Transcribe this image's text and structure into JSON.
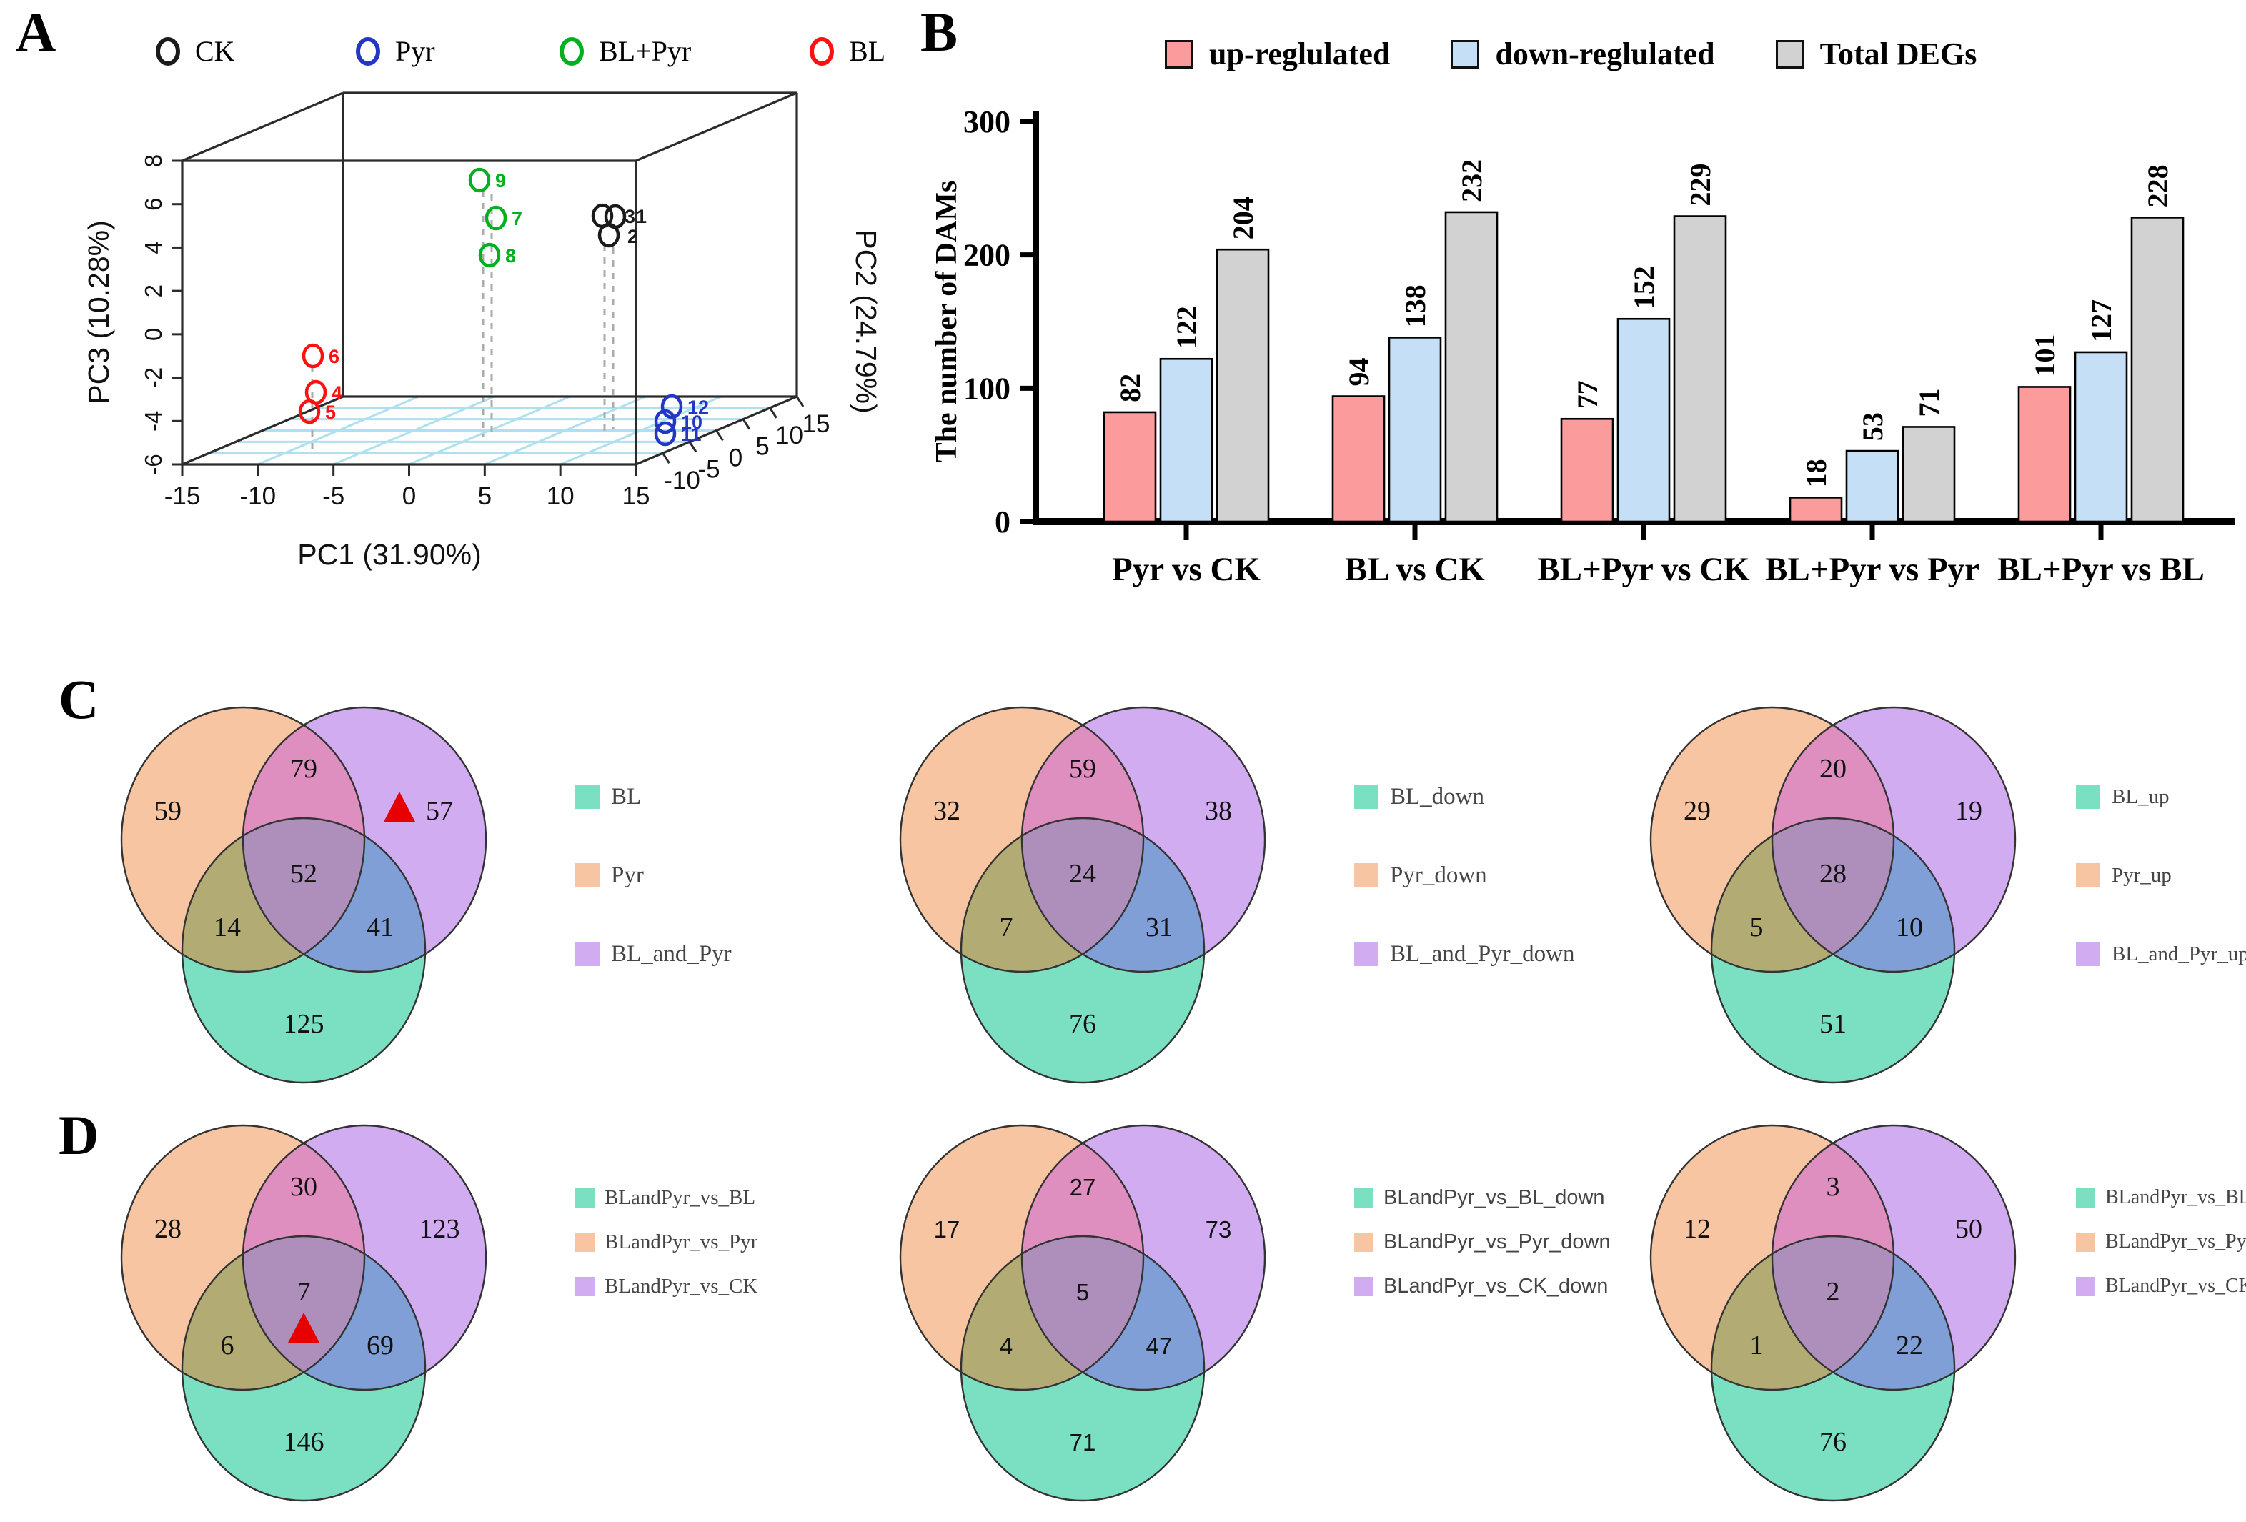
{
  "panels": {
    "a": {
      "label": "A",
      "legend": [
        {
          "label": "CK",
          "color": "#1a1a1a"
        },
        {
          "label": "Pyr",
          "color": "#2336c4"
        },
        {
          "label": "BL+Pyr",
          "color": "#00b01f"
        },
        {
          "label": "BL",
          "color": "#fe1111"
        }
      ],
      "axes": {
        "x": {
          "label": "PC1 (31.90%)",
          "ticks": [
            "-15",
            "-10",
            "-5",
            "0",
            "5",
            "10",
            "15"
          ]
        },
        "y": {
          "label": "PC3 (10.28%)",
          "ticks": [
            "8",
            "6",
            "4",
            "2",
            "0",
            "-2",
            "-4",
            "-6"
          ]
        },
        "z": {
          "label": "PC2 (24.79%)",
          "ticks": [
            "-10",
            "-5",
            "0",
            "5",
            "10",
            "15"
          ]
        }
      },
      "points": [
        {
          "id": "9",
          "color": "#00b01f",
          "x": 671,
          "y": 252
        },
        {
          "id": "7",
          "color": "#00b01f",
          "x": 694,
          "y": 305
        },
        {
          "id": "8",
          "color": "#00b01f",
          "x": 685,
          "y": 357
        },
        {
          "id": "3",
          "color": "#1a1a1a",
          "x": 843,
          "y": 302,
          "lx": 874,
          "ly": 312
        },
        {
          "id": "1",
          "color": "#1a1a1a",
          "x": 861,
          "y": 303,
          "lx": 890,
          "ly": 312
        },
        {
          "id": "2",
          "color": "#1a1a1a",
          "x": 852,
          "y": 329,
          "lx": 878,
          "ly": 340
        },
        {
          "id": "6",
          "color": "#fe1111",
          "x": 438,
          "y": 498
        },
        {
          "id": "4",
          "color": "#fe1111",
          "x": 442,
          "y": 549
        },
        {
          "id": "5",
          "color": "#fe1111",
          "x": 433,
          "y": 576
        },
        {
          "id": "12",
          "color": "#2336c4",
          "x": 940,
          "y": 569
        },
        {
          "id": "10",
          "color": "#2336c4",
          "x": 931,
          "y": 590
        },
        {
          "id": "11",
          "color": "#2336c4",
          "x": 931,
          "y": 607
        }
      ]
    },
    "b": {
      "label": "B",
      "ylabel": "The number of DAMs"
    },
    "c": {
      "label": "C"
    },
    "d": {
      "label": "D"
    }
  },
  "venn_colors": {
    "green": "#7bdfc2",
    "orange": "#f7c5a2",
    "purple": "#d2acf1",
    "orange_purple": "#de8ebf",
    "orange_green": "#b2ab74",
    "purple_green": "#7f9fd6",
    "center": "#ae8fbb",
    "stroke": "#333333",
    "triangle": "#e60000"
  },
  "chart_data": [
    {
      "type": "scatter",
      "subtype": "3d-pca",
      "xlabel": "PC1 (31.90%)",
      "ylabel": "PC3 (10.28%)",
      "zlabel": "PC2 (24.79%)",
      "x_ticks": [
        -15,
        -10,
        -5,
        0,
        5,
        10,
        15
      ],
      "y_ticks": [
        8,
        6,
        4,
        2,
        0,
        -2,
        -4,
        -6
      ],
      "z_ticks": [
        -10,
        -5,
        0,
        5,
        10,
        15
      ],
      "groups": [
        {
          "name": "CK",
          "color": "#1a1a1a",
          "samples": [
            "1",
            "2",
            "3"
          ]
        },
        {
          "name": "Pyr",
          "color": "#2336c4",
          "samples": [
            "10",
            "11",
            "12"
          ]
        },
        {
          "name": "BL+Pyr",
          "color": "#00b01f",
          "samples": [
            "7",
            "8",
            "9"
          ]
        },
        {
          "name": "BL",
          "color": "#fe1111",
          "samples": [
            "4",
            "5",
            "6"
          ]
        }
      ]
    },
    {
      "type": "bar",
      "categories": [
        "Pyr vs CK",
        "BL vs CK",
        "BL+Pyr vs CK",
        "BL+Pyr vs Pyr",
        "BL+Pyr vs BL"
      ],
      "series": [
        {
          "name": "up-reglulated",
          "color": "#fb9b9b",
          "values": [
            82,
            94,
            77,
            18,
            101
          ]
        },
        {
          "name": "down-reglulated",
          "color": "#c4dff6",
          "values": [
            122,
            138,
            152,
            53,
            127
          ]
        },
        {
          "name": "Total DEGs",
          "color": "#d2d2d2",
          "values": [
            204,
            232,
            229,
            71,
            228
          ]
        }
      ],
      "ylabel": "The number of DAMs",
      "ylim": [
        0,
        300
      ],
      "yticks": [
        0,
        100,
        200,
        300
      ],
      "grid": false,
      "legend_position": "top"
    },
    {
      "type": "venn3",
      "panel": "C",
      "sets": {
        "green": "BL",
        "orange": "Pyr",
        "purple": "BL_and_Pyr"
      },
      "counts": {
        "orange": 59,
        "purple": 57,
        "green": 125,
        "orange_purple": 79,
        "orange_green": 14,
        "purple_green": 41,
        "center": 52
      },
      "legend": [
        "BL",
        "Pyr",
        "BL_and_Pyr"
      ],
      "marker": {
        "shape": "red-triangle",
        "region": "purple",
        "x": 484,
        "y": 156
      }
    },
    {
      "type": "venn3",
      "panel": "C",
      "sets": {
        "green": "BL_down",
        "orange": "Pyr_down",
        "purple": "BL_and_Pyr_down"
      },
      "counts": {
        "orange": 32,
        "purple": 38,
        "green": 76,
        "orange_purple": 59,
        "orange_green": 7,
        "purple_green": 31,
        "center": 24
      },
      "legend": [
        "BL_down",
        "Pyr_down",
        "BL_and_Pyr_down"
      ]
    },
    {
      "type": "venn3",
      "panel": "C",
      "sets": {
        "green": "BL_up",
        "orange": "Pyr_up",
        "purple": "BL_and_Pyr_up"
      },
      "counts": {
        "orange": 29,
        "purple": 19,
        "green": 51,
        "orange_purple": 20,
        "orange_green": 5,
        "purple_green": 10,
        "center": 28
      },
      "legend": [
        "BL_up",
        "Pyr_up",
        "BL_and_Pyr_up"
      ]
    },
    {
      "type": "venn3",
      "panel": "D",
      "sets": {
        "green": "BLandPyr_vs_BL",
        "orange": "BLandPyr_vs_Pyr",
        "purple": "BLandPyr_vs_CK"
      },
      "counts": {
        "orange": 28,
        "purple": 123,
        "green": 146,
        "orange_purple": 30,
        "orange_green": 6,
        "purple_green": 69,
        "center": 7
      },
      "legend": [
        "BLandPyr_vs_BL",
        "BLandPyr_vs_Pyr",
        "BLandPyr_vs_CK"
      ],
      "marker": {
        "shape": "red-triangle",
        "region": "center",
        "x": 350,
        "y": 300
      }
    },
    {
      "type": "venn3",
      "panel": "D",
      "sets": {
        "green": "BLandPyr_vs_BL_down",
        "orange": "BLandPyr_vs_Pyr_down",
        "purple": "BLandPyr_vs_CK_down"
      },
      "counts": {
        "orange": 17,
        "purple": 73,
        "green": 71,
        "orange_purple": 27,
        "orange_green": 4,
        "purple_green": 47,
        "center": 5
      },
      "legend": [
        "BLandPyr_vs_BL_down",
        "BLandPyr_vs_Pyr_down",
        "BLandPyr_vs_CK_down"
      ]
    },
    {
      "type": "venn3",
      "panel": "D",
      "sets": {
        "green": "BLandPyr_vs_BL_up",
        "orange": "BLandPyr_vs_Pyr_up",
        "purple": "BLandPyr_vs_CK_up"
      },
      "counts": {
        "orange": 12,
        "purple": 50,
        "green": 76,
        "orange_purple": 3,
        "orange_green": 1,
        "purple_green": 22,
        "center": 2
      },
      "legend": [
        "BLandPyr_vs_BL_up",
        "BLandPyr_vs_Pyr_up",
        "BLandPyr_vs_CK_up"
      ]
    }
  ]
}
